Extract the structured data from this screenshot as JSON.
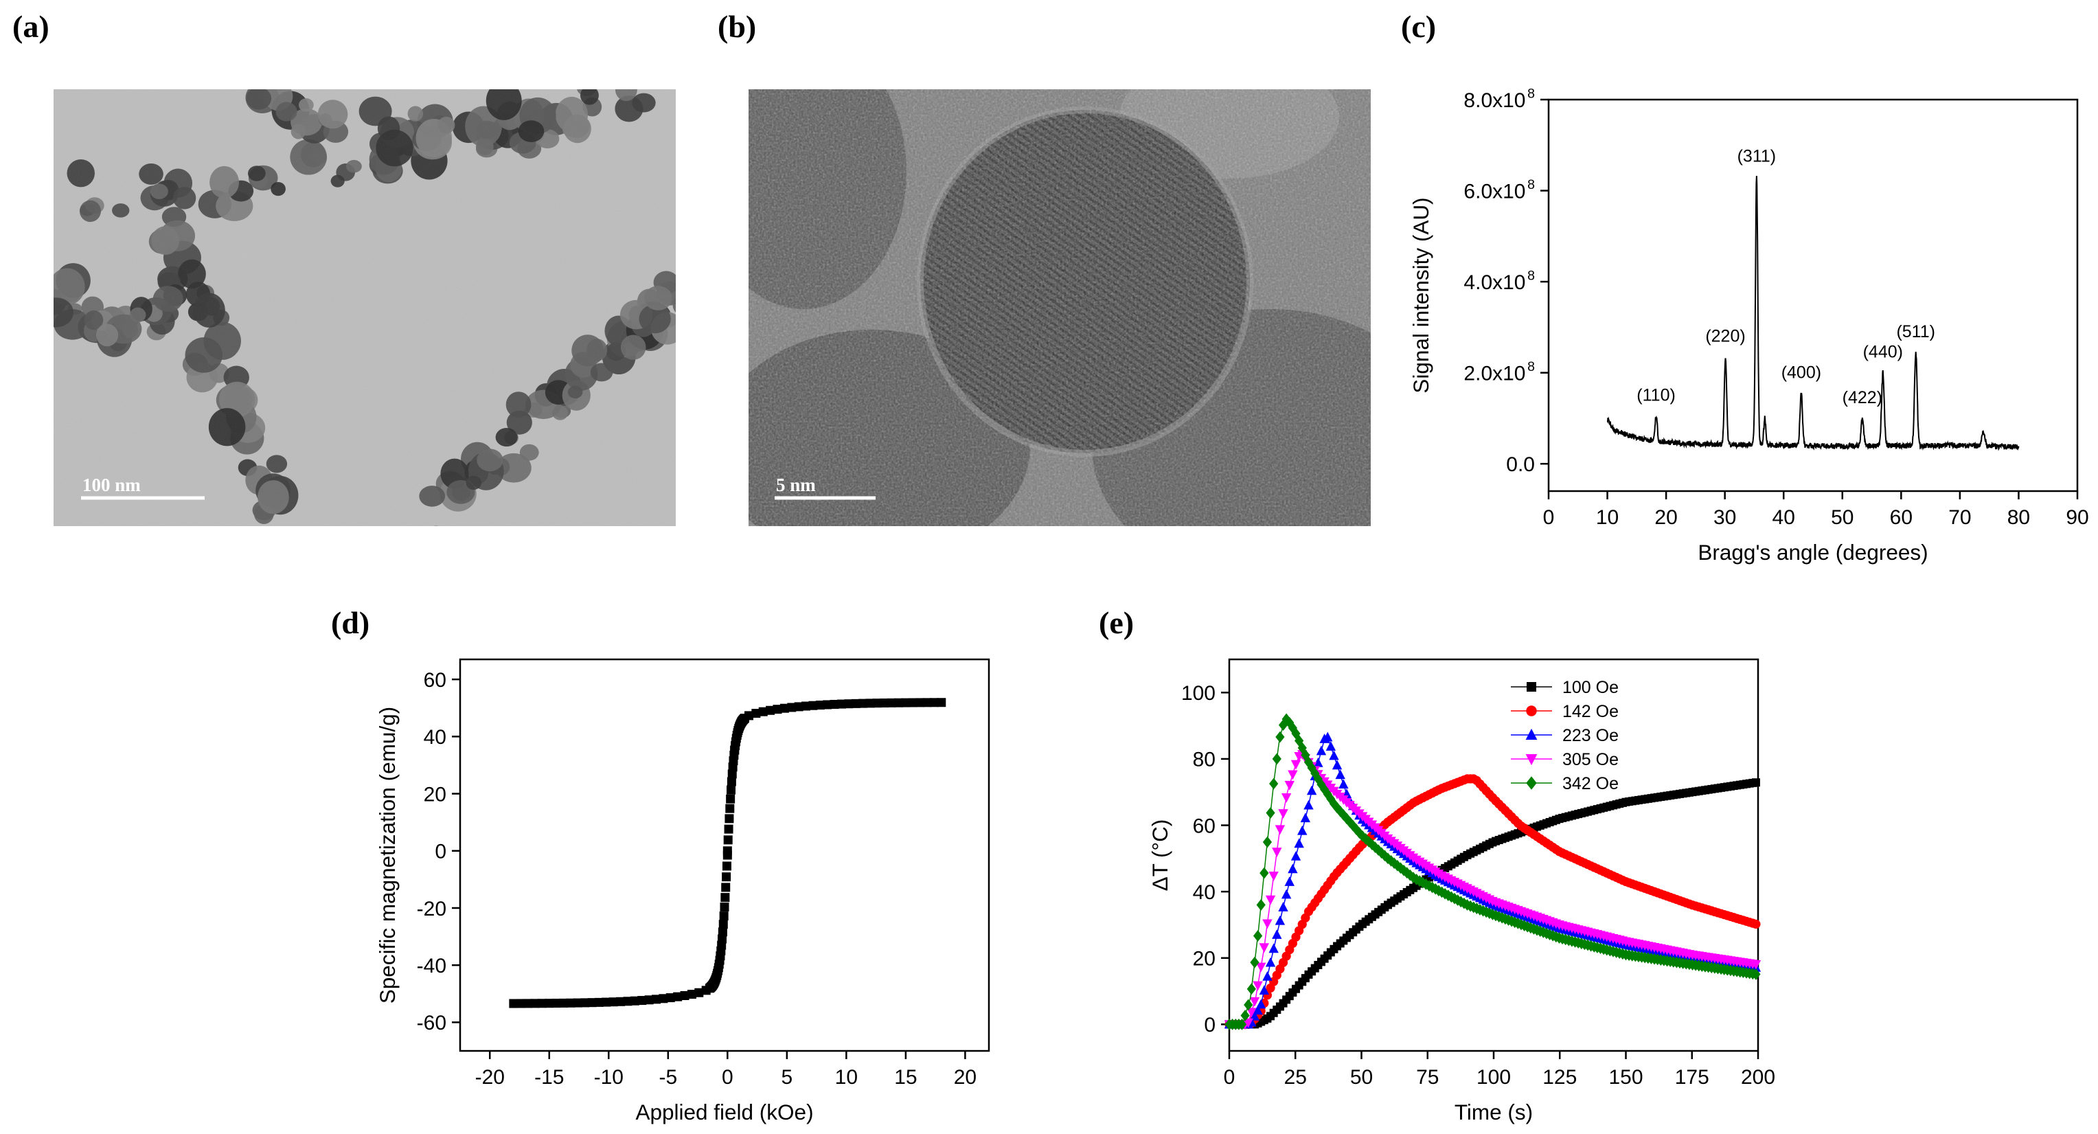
{
  "panels": {
    "a": {
      "label": "(a)",
      "scalebar_text": "100 nm"
    },
    "b": {
      "label": "(b)",
      "scalebar_text": "5 nm"
    },
    "c": {
      "label": "(c)"
    },
    "d": {
      "label": "(d)"
    },
    "e": {
      "label": "(e)"
    }
  },
  "chart_data": [
    {
      "id": "c",
      "type": "line",
      "title": "",
      "xlabel": "Bragg's angle (degrees)",
      "ylabel": "Signal intensity (AU)",
      "xlim": [
        0,
        90
      ],
      "ylim": [
        -60000000.0,
        800000000.0
      ],
      "xticks": [
        0,
        10,
        20,
        30,
        40,
        50,
        60,
        70,
        80,
        90
      ],
      "yticks": [
        0,
        200000000.0,
        400000000.0,
        600000000.0,
        800000000.0
      ],
      "ytick_labels": [
        {
          "mantissa": "0.0",
          "exp": ""
        },
        {
          "mantissa": "2.0x10",
          "exp": "8"
        },
        {
          "mantissa": "4.0x10",
          "exp": "8"
        },
        {
          "mantissa": "6.0x10",
          "exp": "8"
        },
        {
          "mantissa": "8.0x10",
          "exp": "8"
        }
      ],
      "color": "#000000",
      "baseline": [
        [
          10,
          100000000.0
        ],
        [
          11,
          75000000.0
        ],
        [
          14,
          60000000.0
        ],
        [
          17,
          52000000.0
        ],
        [
          20,
          47000000.0
        ],
        [
          25,
          44000000.0
        ],
        [
          30,
          42000000.0
        ],
        [
          35,
          42000000.0
        ],
        [
          40,
          40000000.0
        ],
        [
          45,
          40000000.0
        ],
        [
          50,
          39000000.0
        ],
        [
          55,
          40000000.0
        ],
        [
          60,
          40000000.0
        ],
        [
          65,
          40000000.0
        ],
        [
          70,
          40000000.0
        ],
        [
          75,
          38000000.0
        ],
        [
          80,
          37000000.0
        ]
      ],
      "peaks": [
        {
          "x": 18.3,
          "y": 105000000.0,
          "w": 0.28,
          "label": "(110)"
        },
        {
          "x": 30.1,
          "y": 235000000.0,
          "w": 0.28,
          "label": "(220)"
        },
        {
          "x": 35.4,
          "y": 630000000.0,
          "w": 0.28,
          "label": "(311)"
        },
        {
          "x": 36.8,
          "y": 100000000.0,
          "w": 0.25,
          "label": ""
        },
        {
          "x": 43.0,
          "y": 155000000.0,
          "w": 0.3,
          "label": "(400)"
        },
        {
          "x": 53.4,
          "y": 100000000.0,
          "w": 0.3,
          "label": "(422)"
        },
        {
          "x": 56.9,
          "y": 200000000.0,
          "w": 0.32,
          "label": "(440)"
        },
        {
          "x": 62.5,
          "y": 245000000.0,
          "w": 0.32,
          "label": "(511)"
        },
        {
          "x": 74.0,
          "y": 72000000.0,
          "w": 0.4,
          "label": ""
        }
      ]
    },
    {
      "id": "d",
      "type": "scatter",
      "title": "",
      "xlabel": "Applied field (kOe)",
      "ylabel": "Specific magnetization (emu/g)",
      "xlim": [
        -22.5,
        22
      ],
      "ylim": [
        -70,
        67
      ],
      "xticks": [
        -20,
        -15,
        -10,
        -5,
        0,
        5,
        10,
        15,
        20
      ],
      "yticks": [
        -60,
        -40,
        -20,
        0,
        20,
        40,
        60
      ],
      "series": [
        {
          "marker": "square",
          "color": "#000000",
          "ms": 52,
          "hk": 0.6
        }
      ],
      "x_range": [
        -18,
        18
      ]
    },
    {
      "id": "e",
      "type": "scatter",
      "title": "",
      "xlabel": "Time (s)",
      "ylabel": "ΔT (°C)",
      "xlim": [
        0,
        200
      ],
      "ylim": [
        -8,
        110
      ],
      "xticks": [
        0,
        25,
        50,
        75,
        100,
        125,
        150,
        175,
        200
      ],
      "yticks": [
        0,
        20,
        40,
        60,
        80,
        100
      ],
      "legend_position": "top-right",
      "series": [
        {
          "name": "100 Oe",
          "marker": "square",
          "color": "#000000",
          "points": [
            [
              0,
              0
            ],
            [
              10,
              0
            ],
            [
              15,
              2
            ],
            [
              20,
              6
            ],
            [
              30,
              15
            ],
            [
              40,
              23
            ],
            [
              50,
              30
            ],
            [
              60,
              36
            ],
            [
              75,
              44
            ],
            [
              90,
              51
            ],
            [
              100,
              55
            ],
            [
              125,
              62
            ],
            [
              150,
              67
            ],
            [
              175,
              70
            ],
            [
              200,
              73
            ]
          ]
        },
        {
          "name": "142 Oe",
          "marker": "circle",
          "color": "#ff0000",
          "points": [
            [
              0,
              0
            ],
            [
              8,
              0
            ],
            [
              12,
              4
            ],
            [
              15,
              10
            ],
            [
              20,
              18
            ],
            [
              30,
              34
            ],
            [
              40,
              45
            ],
            [
              50,
              54
            ],
            [
              60,
              61
            ],
            [
              70,
              67
            ],
            [
              80,
              71
            ],
            [
              90,
              74
            ],
            [
              93,
              74
            ],
            [
              100,
              68
            ],
            [
              110,
              60
            ],
            [
              125,
              52
            ],
            [
              150,
              43
            ],
            [
              175,
              36
            ],
            [
              200,
              30
            ]
          ]
        },
        {
          "name": "223 Oe",
          "marker": "triangle-up",
          "color": "#0000ff",
          "points": [
            [
              0,
              0
            ],
            [
              8,
              0
            ],
            [
              12,
              6
            ],
            [
              16,
              20
            ],
            [
              20,
              34
            ],
            [
              25,
              50
            ],
            [
              30,
              66
            ],
            [
              33,
              77
            ],
            [
              36,
              86
            ],
            [
              37,
              87
            ],
            [
              40,
              80
            ],
            [
              45,
              68
            ],
            [
              50,
              62
            ],
            [
              60,
              55
            ],
            [
              70,
              49
            ],
            [
              80,
              44
            ],
            [
              90,
              40
            ],
            [
              100,
              36
            ],
            [
              125,
              29
            ],
            [
              150,
              24
            ],
            [
              175,
              20
            ],
            [
              200,
              17
            ]
          ]
        },
        {
          "name": "305 Oe",
          "marker": "triangle-down",
          "color": "#ff00ff",
          "points": [
            [
              0,
              0
            ],
            [
              7,
              0
            ],
            [
              10,
              8
            ],
            [
              13,
              22
            ],
            [
              16,
              40
            ],
            [
              19,
              58
            ],
            [
              22,
              70
            ],
            [
              25,
              78
            ],
            [
              27,
              82
            ],
            [
              30,
              79
            ],
            [
              35,
              74
            ],
            [
              40,
              70
            ],
            [
              50,
              63
            ],
            [
              60,
              56
            ],
            [
              70,
              50
            ],
            [
              80,
              45
            ],
            [
              90,
              41
            ],
            [
              100,
              37
            ],
            [
              125,
              30
            ],
            [
              150,
              25
            ],
            [
              175,
              21
            ],
            [
              200,
              18
            ]
          ]
        },
        {
          "name": "342 Oe",
          "marker": "diamond",
          "color": "#008000",
          "points": [
            [
              0,
              0
            ],
            [
              5,
              0
            ],
            [
              8,
              8
            ],
            [
              11,
              28
            ],
            [
              14,
              52
            ],
            [
              17,
              74
            ],
            [
              19,
              86
            ],
            [
              21,
              92
            ],
            [
              22,
              92
            ],
            [
              25,
              88
            ],
            [
              30,
              79
            ],
            [
              35,
              72
            ],
            [
              40,
              66
            ],
            [
              50,
              57
            ],
            [
              60,
              50
            ],
            [
              70,
              44
            ],
            [
              80,
              40
            ],
            [
              90,
              36
            ],
            [
              100,
              33
            ],
            [
              125,
              26
            ],
            [
              150,
              21
            ],
            [
              175,
              18
            ],
            [
              200,
              15
            ]
          ]
        }
      ]
    }
  ]
}
